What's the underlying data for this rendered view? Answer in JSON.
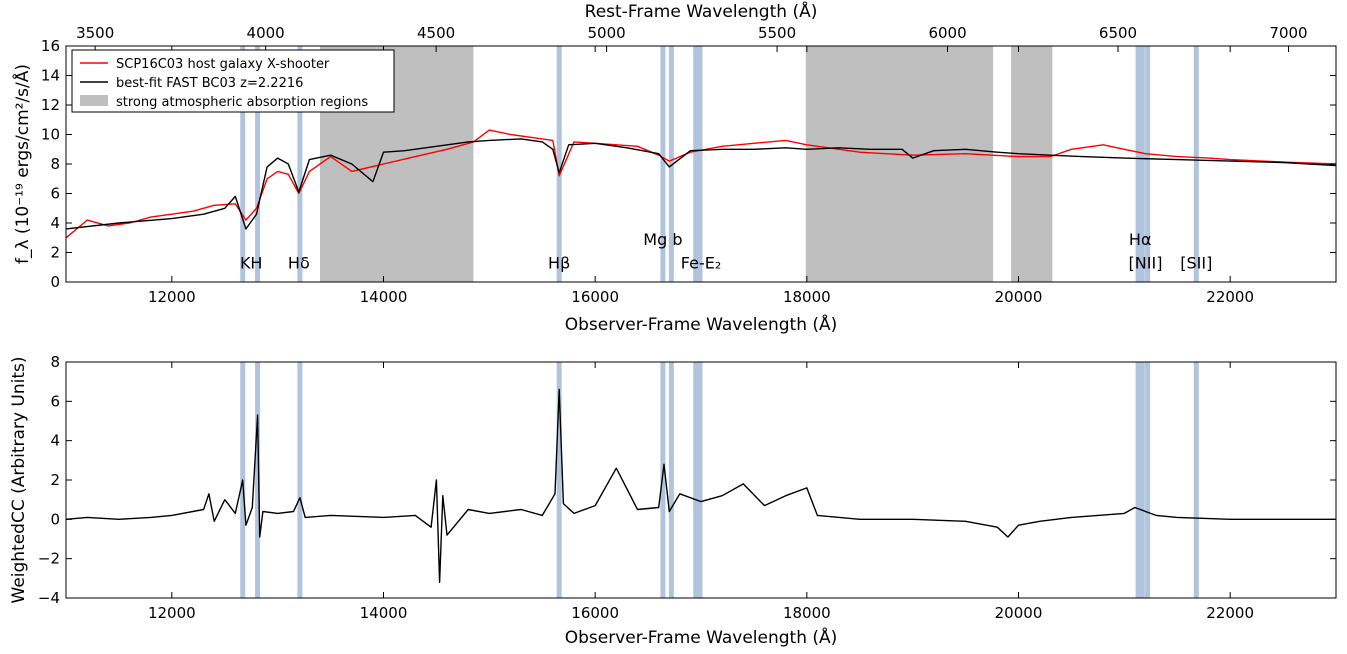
{
  "chart_data": [
    {
      "type": "line",
      "xlabel": "Observer-Frame Wavelength (Å)",
      "ylabel": "f_λ (10⁻¹⁹ ergs/cm²/s/Å)",
      "top_xlabel": "Rest-Frame Wavelength (Å)",
      "xlim": [
        11000,
        23000
      ],
      "ylim": [
        0,
        16
      ],
      "x_ticks": [
        12000,
        14000,
        16000,
        18000,
        20000,
        22000
      ],
      "y_ticks": [
        0,
        2,
        4,
        6,
        8,
        10,
        12,
        14,
        16
      ],
      "top_ticks": [
        3500,
        4000,
        4500,
        5000,
        5500,
        6000,
        6500,
        7000
      ],
      "redshift": 2.2216,
      "legend_position": "top-left",
      "legend": [
        {
          "label": "SCP16C03 host galaxy X-shooter",
          "color": "#ff0000",
          "kind": "line"
        },
        {
          "label": "best-fit FAST BC03 z=2.2216",
          "color": "#000000",
          "kind": "line"
        },
        {
          "label": "strong atmospheric absorption regions",
          "color": "#bfbfbf",
          "kind": "patch"
        }
      ],
      "absorption_regions": [
        [
          13400,
          14850
        ],
        [
          17990,
          19760
        ],
        [
          19930,
          20320
        ]
      ],
      "emission_lines": [
        12670,
        12810,
        13210,
        15660,
        16640,
        16720,
        16950,
        16990,
        21130,
        21170,
        21220,
        21680
      ],
      "line_labels": [
        {
          "text": "KH",
          "x": 12750,
          "y": 0.9
        },
        {
          "text": "Hδ",
          "x": 13200,
          "y": 0.9
        },
        {
          "text": "Hβ",
          "x": 15660,
          "y": 0.9
        },
        {
          "text": "Mg b",
          "x": 16640,
          "y": 2.5
        },
        {
          "text": "Fe-E₂",
          "x": 17000,
          "y": 0.9
        },
        {
          "text": "Hα",
          "x": 21150,
          "y": 2.5
        },
        {
          "text": "[NII]",
          "x": 21200,
          "y": 0.9
        },
        {
          "text": "[SII]",
          "x": 21680,
          "y": 0.9
        }
      ],
      "series": [
        {
          "name": "SCP16C03 host galaxy X-shooter",
          "color": "#ff0000",
          "x": [
            11000,
            11200,
            11400,
            11600,
            11800,
            12000,
            12200,
            12400,
            12600,
            12700,
            12800,
            12900,
            13000,
            13100,
            13200,
            13300,
            13400,
            13500,
            13700,
            14000,
            14300,
            14600,
            14850,
            15000,
            15200,
            15400,
            15600,
            15660,
            15800,
            16000,
            16200,
            16400,
            16600,
            16700,
            16900,
            17200,
            17500,
            17800,
            18000,
            18500,
            19000,
            19500,
            20000,
            20300,
            20500,
            20800,
            21000,
            21200,
            21500,
            21800,
            22000,
            22300,
            22600,
            23000
          ],
          "y": [
            3.0,
            4.2,
            3.8,
            4.0,
            4.4,
            4.6,
            4.8,
            5.2,
            5.3,
            4.2,
            5.0,
            7.0,
            7.5,
            7.3,
            6.0,
            7.5,
            8.0,
            8.5,
            7.5,
            8.0,
            8.5,
            9.0,
            9.5,
            10.3,
            10.0,
            9.8,
            9.6,
            7.2,
            9.5,
            9.4,
            9.3,
            9.2,
            8.6,
            8.2,
            8.8,
            9.2,
            9.4,
            9.6,
            9.3,
            8.8,
            8.6,
            8.7,
            8.5,
            8.5,
            9.0,
            9.3,
            9.0,
            8.7,
            8.5,
            8.4,
            8.3,
            8.2,
            8.1,
            8.0
          ]
        },
        {
          "name": "best-fit FAST BC03 z=2.2216",
          "color": "#000000",
          "x": [
            11000,
            11500,
            12000,
            12300,
            12500,
            12600,
            12700,
            12800,
            12900,
            13000,
            13100,
            13200,
            13300,
            13500,
            13700,
            13900,
            14000,
            14200,
            14500,
            14800,
            15000,
            15300,
            15500,
            15600,
            15660,
            15750,
            16000,
            16300,
            16600,
            16700,
            16900,
            17200,
            17500,
            17800,
            18000,
            18300,
            18600,
            18900,
            19000,
            19200,
            19500,
            19800,
            20000,
            20300,
            20600,
            21000,
            21500,
            22000,
            22500,
            23000
          ],
          "y": [
            3.6,
            4.0,
            4.3,
            4.6,
            5.0,
            5.8,
            3.6,
            4.6,
            7.8,
            8.4,
            8.0,
            6.1,
            8.3,
            8.6,
            8.0,
            6.8,
            8.8,
            8.9,
            9.2,
            9.5,
            9.6,
            9.7,
            9.5,
            9.0,
            7.4,
            9.3,
            9.4,
            9.1,
            8.7,
            7.8,
            8.9,
            9.0,
            9.0,
            9.1,
            9.0,
            9.1,
            9.0,
            9.0,
            8.4,
            8.9,
            9.0,
            8.8,
            8.7,
            8.6,
            8.5,
            8.4,
            8.3,
            8.2,
            8.1,
            7.9
          ]
        }
      ]
    },
    {
      "type": "line",
      "xlabel": "Observer-Frame Wavelength (Å)",
      "ylabel": "WeightedCC (Arbitrary Units)",
      "xlim": [
        11000,
        23000
      ],
      "ylim": [
        -4,
        8
      ],
      "x_ticks": [
        12000,
        14000,
        16000,
        18000,
        20000,
        22000
      ],
      "y_ticks": [
        -4,
        -2,
        0,
        2,
        4,
        6,
        8
      ],
      "emission_lines": [
        12670,
        12810,
        13210,
        15660,
        16640,
        16720,
        16950,
        16990,
        21130,
        21170,
        21220,
        21680
      ],
      "series": [
        {
          "name": "WeightedCC",
          "color": "#000000",
          "x": [
            11000,
            11200,
            11500,
            11800,
            12000,
            12300,
            12350,
            12400,
            12500,
            12600,
            12670,
            12700,
            12760,
            12810,
            12830,
            12860,
            13000,
            13150,
            13210,
            13260,
            13500,
            14000,
            14300,
            14450,
            14500,
            14530,
            14560,
            14600,
            14800,
            15000,
            15300,
            15500,
            15620,
            15660,
            15700,
            15800,
            16000,
            16200,
            16400,
            16600,
            16650,
            16700,
            16800,
            17000,
            17200,
            17400,
            17600,
            17800,
            18000,
            18100,
            18500,
            19000,
            19500,
            19800,
            19900,
            20000,
            20200,
            20500,
            21000,
            21100,
            21200,
            21300,
            21500,
            22000,
            22500,
            23000
          ],
          "y": [
            0.0,
            0.1,
            0.0,
            0.1,
            0.2,
            0.5,
            1.3,
            -0.1,
            1.0,
            0.3,
            2.0,
            -0.3,
            0.6,
            5.3,
            -0.9,
            0.4,
            0.3,
            0.4,
            1.1,
            0.1,
            0.2,
            0.1,
            0.2,
            -0.4,
            2.0,
            -3.2,
            1.2,
            -0.8,
            0.5,
            0.3,
            0.5,
            0.2,
            1.3,
            6.6,
            0.8,
            0.3,
            0.7,
            2.6,
            0.5,
            0.6,
            2.8,
            0.4,
            1.3,
            0.9,
            1.2,
            1.8,
            0.7,
            1.2,
            1.6,
            0.2,
            0.0,
            0.0,
            -0.1,
            -0.4,
            -0.9,
            -0.3,
            -0.1,
            0.1,
            0.3,
            0.6,
            0.4,
            0.2,
            0.1,
            0.0,
            0.0,
            0.0
          ]
        }
      ]
    }
  ]
}
